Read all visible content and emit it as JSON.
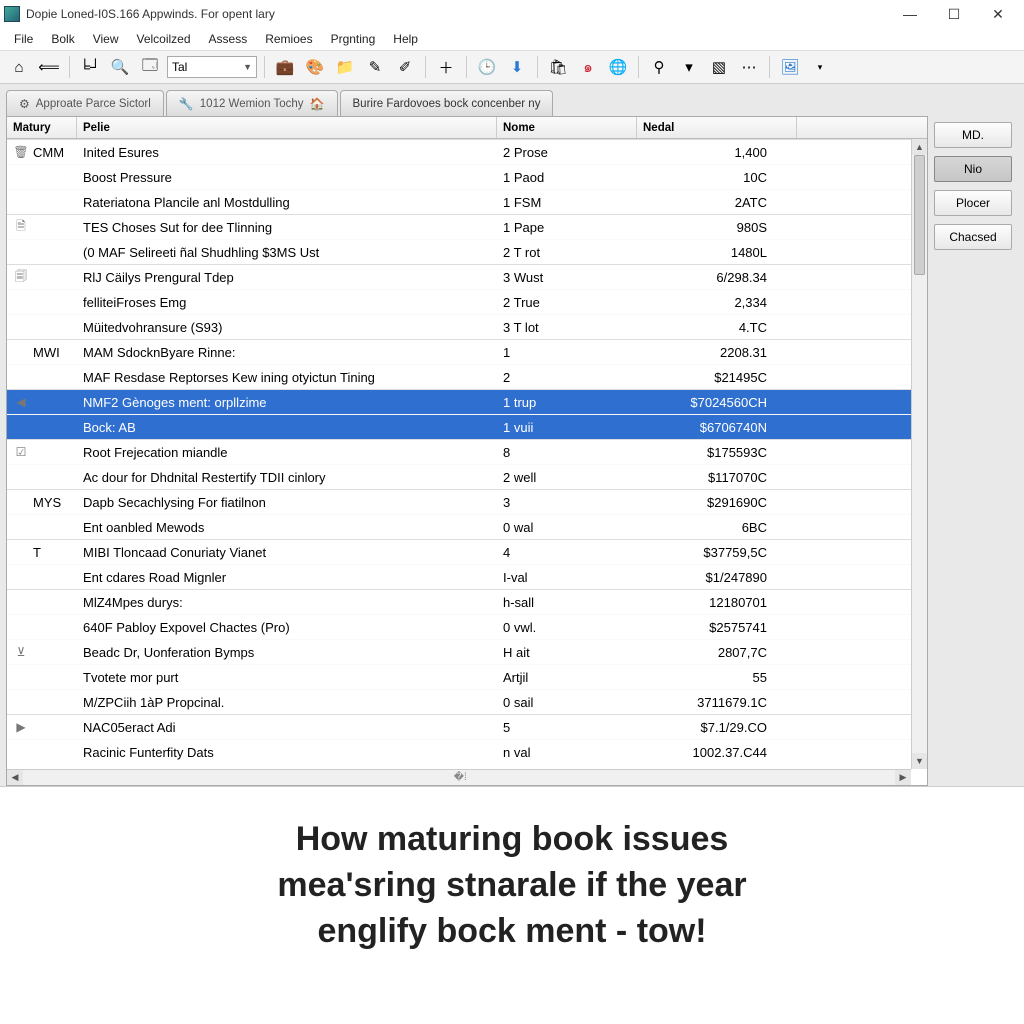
{
  "colors": {
    "selection_bg": "#2f6fd0",
    "selection_fg": "#ffffff",
    "panel_bg": "#e9e9e9",
    "header_grad_top": "#fbfbfb",
    "header_grad_bot": "#ececec"
  },
  "window": {
    "title": "Dopie Loned-I0S.166 Appwinds. For opent lary"
  },
  "menu": [
    "File",
    "Bolk",
    "View",
    "Velcoilzed",
    "Assess",
    "Remioes",
    "Prgnting",
    "Help"
  ],
  "toolbar": {
    "combo_value": "Tal"
  },
  "tabs": [
    {
      "label": "Approate Parce Sictorl",
      "icon": "⚙"
    },
    {
      "label": "1012 Wemion Tochy",
      "icon": "🔧",
      "trailing": "🏠"
    },
    {
      "label": "Burire Fardovoes bock concenber ny",
      "icon": ""
    }
  ],
  "columns": [
    "Matury",
    "Pelie",
    "Nome",
    "Nedal"
  ],
  "side_buttons": [
    {
      "label": "MD."
    },
    {
      "label": "Nio",
      "active": true
    },
    {
      "label": "Plocer"
    },
    {
      "label": "Chacsed"
    }
  ],
  "rows": [
    {
      "group": "CMM",
      "sep": true,
      "icon": "🗑",
      "pelie": "Inited Esures",
      "nome": "2 Prose",
      "nedal": "1,400"
    },
    {
      "group": "",
      "icon": "",
      "pelie": "Boost Pressure",
      "nome": "1 Paod",
      "nedal": "10C"
    },
    {
      "group": "",
      "icon": "",
      "pelie": "Rateriatona Plancile anl Mostdulling",
      "nome": "1 FSM",
      "nedal": "2ATC"
    },
    {
      "group": "",
      "sep": true,
      "icon": "🗎",
      "pelie": "TES Choses Sut for dee Tlinning",
      "nome": "1 Pape",
      "nedal": "980S"
    },
    {
      "group": "",
      "icon": "",
      "pelie": "(0 MAF Selireeti ñal Shudhling $3MS Ust",
      "nome": "2 T rot",
      "nedal": "1480L"
    },
    {
      "group": "",
      "sep": true,
      "icon": "🗐",
      "pelie": "RlJ Cäilys Prengural Tdep",
      "nome": "3 Wust",
      "nedal": "6/298.34"
    },
    {
      "group": "",
      "icon": "",
      "pelie": "felliteiFroses Emg",
      "nome": "2 True",
      "nedal": "2,334"
    },
    {
      "group": "",
      "icon": "",
      "pelie": "Müitedvohransure (S93)",
      "nome": "3 T lot",
      "nedal": "4.TC"
    },
    {
      "group": "MWI",
      "sep": true,
      "icon": "",
      "pelie": "MAM SdocknByare Rinne:",
      "nome": "1",
      "nedal": "2208.31"
    },
    {
      "group": "",
      "icon": "",
      "pelie": "MAF Resdase Reptorses Kew ining otyictun Tining",
      "nome": "2",
      "nedal": "$21495C"
    },
    {
      "group": "",
      "sep": true,
      "selected": true,
      "icon": "◀",
      "pelie": "NMF2 Gènoges ment: orpllzime",
      "nome": "1 trup",
      "nedal": "$7024560CH"
    },
    {
      "group": "",
      "selected": true,
      "icon": "",
      "pelie": "Bock: AB",
      "nome": "1 vuii",
      "nedal": "$6706740N"
    },
    {
      "group": "",
      "sep": true,
      "icon": "☑",
      "pelie": "Root Frejecation miandle",
      "nome": "8",
      "nedal": "$175593C"
    },
    {
      "group": "",
      "icon": "",
      "pelie": "Ac dour for Dhdnital Restertify TDII cinlory",
      "nome": "2 well",
      "nedal": "$117070C"
    },
    {
      "group": "MYS",
      "sep": true,
      "icon": "",
      "pelie": "Dapb Secachlysing For fiatilnon",
      "nome": "3",
      "nedal": "$291690C"
    },
    {
      "group": "",
      "icon": "",
      "pelie": "Ent oanbled Mewods",
      "nome": "0 wal",
      "nedal": "6BC"
    },
    {
      "group": "T",
      "sep": true,
      "icon": "",
      "pelie": "MIBI Tloncaad Conuriaty Vianet",
      "nome": "4",
      "nedal": "$37759,5C"
    },
    {
      "group": "",
      "icon": "",
      "pelie": "Ent cdares Road Mignler",
      "nome": "I-val",
      "nedal": "$1/247890"
    },
    {
      "group": "",
      "sep": true,
      "icon": "",
      "pelie": "MlZ4Mpes durys:",
      "nome": "h-sall",
      "nedal": "12180701"
    },
    {
      "group": "",
      "icon": "",
      "pelie": "640F Pabloy Expovel Chactes (Pro)",
      "nome": "0 vwl.",
      "nedal": "$2575741"
    },
    {
      "group": "",
      "icon": "⊻",
      "pelie": "Beadc Dr, Uonferation Bymps",
      "nome": "H ait",
      "nedal": "2807,7C"
    },
    {
      "group": "",
      "icon": "",
      "pelie": "Tvotete mor purt",
      "nome": "Artjil",
      "nedal": "55"
    },
    {
      "group": "",
      "icon": "",
      "pelie": "M/ZPCiih 1àP Propcinal.",
      "nome": "0 sail",
      "nedal": "3711679.1C"
    },
    {
      "group": "",
      "sep": true,
      "icon": "▶",
      "pelie": "NAC05eract Adi",
      "nome": "5",
      "nedal": "$7.1/29.CO"
    },
    {
      "group": "",
      "icon": "",
      "pelie": "Racinic Funterfity Dats",
      "nome": "n val",
      "nedal": "1002.37.C44"
    }
  ],
  "caption": {
    "l1": "How maturing book issues",
    "l2": "mea'sring stnarale if the year",
    "l3": "englify bock ment - tow!"
  }
}
